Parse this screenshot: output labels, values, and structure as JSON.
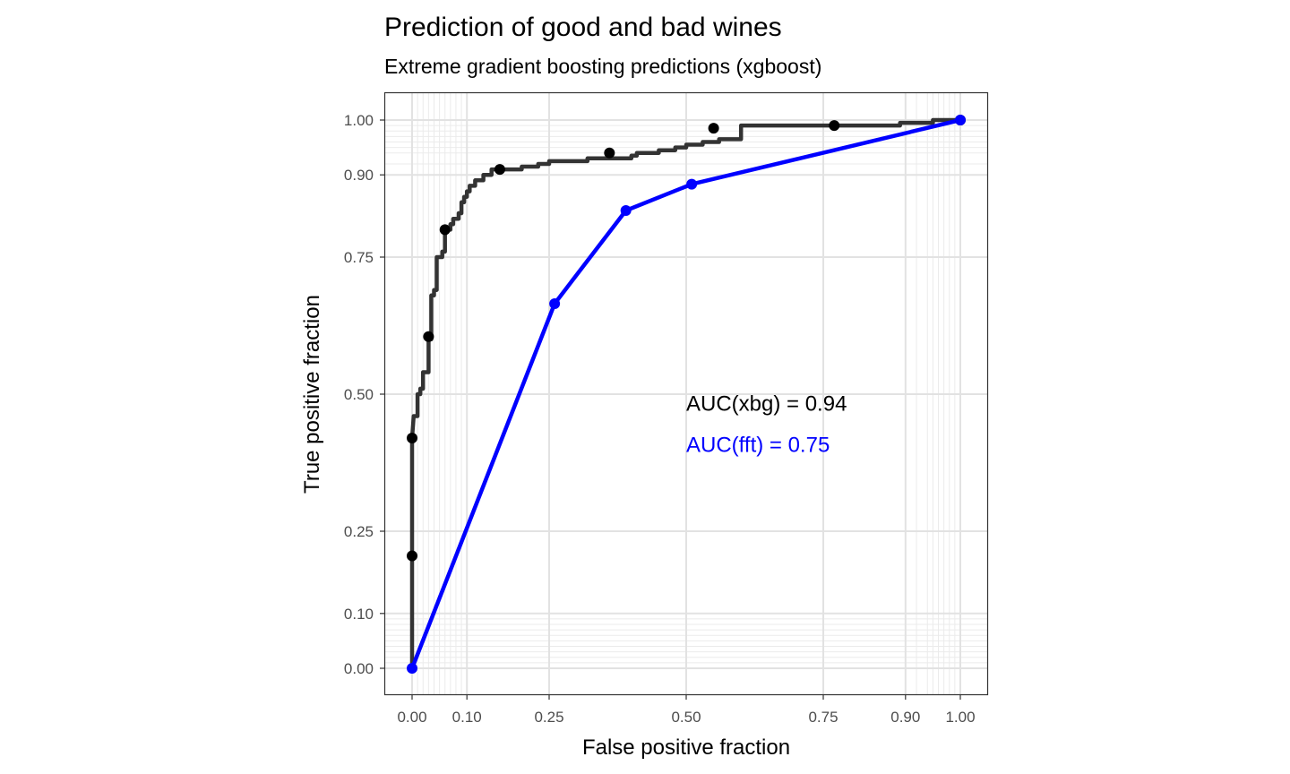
{
  "chart_data": {
    "type": "line",
    "title": "Prediction of good and bad wines",
    "subtitle": "Extreme gradient boosting predictions (xgboost)",
    "xlabel": "False positive fraction",
    "ylabel": "True positive fraction",
    "xlim": [
      0,
      1
    ],
    "ylim": [
      0,
      1
    ],
    "x_ticks": [
      0.0,
      0.1,
      0.25,
      0.5,
      0.75,
      0.9,
      1.0
    ],
    "x_tick_labels": [
      "0.00",
      "0.10",
      "0.25",
      "0.50",
      "0.75",
      "0.90",
      "1.00"
    ],
    "y_ticks": [
      0.0,
      0.1,
      0.25,
      0.5,
      0.75,
      0.9,
      1.0
    ],
    "y_tick_labels": [
      "0.00",
      "0.10",
      "0.25",
      "0.50",
      "0.75",
      "0.90",
      "1.00"
    ],
    "grid": true,
    "annotations": [
      {
        "text": "AUC(xbg) = 0.94",
        "x": 0.5,
        "y": 0.47,
        "color": "#000000"
      },
      {
        "text": "AUC(fft) = 0.75",
        "x": 0.5,
        "y": 0.395,
        "color": "#0000ff"
      }
    ],
    "series": [
      {
        "color": "#333333",
        "line": [
          [
            0,
            0
          ],
          [
            0,
            0.19
          ],
          [
            0,
            0.42
          ],
          [
            0.003,
            0.46
          ],
          [
            0.01,
            0.46
          ],
          [
            0.01,
            0.5
          ],
          [
            0.015,
            0.5
          ],
          [
            0.015,
            0.51
          ],
          [
            0.02,
            0.51
          ],
          [
            0.02,
            0.54
          ],
          [
            0.03,
            0.54
          ],
          [
            0.03,
            0.6
          ],
          [
            0.035,
            0.6
          ],
          [
            0.035,
            0.68
          ],
          [
            0.04,
            0.68
          ],
          [
            0.04,
            0.69
          ],
          [
            0.045,
            0.69
          ],
          [
            0.045,
            0.75
          ],
          [
            0.055,
            0.75
          ],
          [
            0.055,
            0.76
          ],
          [
            0.06,
            0.76
          ],
          [
            0.06,
            0.8
          ],
          [
            0.07,
            0.8
          ],
          [
            0.07,
            0.81
          ],
          [
            0.075,
            0.81
          ],
          [
            0.075,
            0.82
          ],
          [
            0.085,
            0.82
          ],
          [
            0.085,
            0.83
          ],
          [
            0.09,
            0.83
          ],
          [
            0.09,
            0.85
          ],
          [
            0.095,
            0.85
          ],
          [
            0.095,
            0.86
          ],
          [
            0.1,
            0.86
          ],
          [
            0.1,
            0.87
          ],
          [
            0.105,
            0.87
          ],
          [
            0.105,
            0.88
          ],
          [
            0.115,
            0.88
          ],
          [
            0.115,
            0.89
          ],
          [
            0.13,
            0.89
          ],
          [
            0.13,
            0.9
          ],
          [
            0.145,
            0.9
          ],
          [
            0.145,
            0.91
          ],
          [
            0.2,
            0.91
          ],
          [
            0.2,
            0.915
          ],
          [
            0.23,
            0.915
          ],
          [
            0.23,
            0.92
          ],
          [
            0.25,
            0.92
          ],
          [
            0.25,
            0.925
          ],
          [
            0.32,
            0.925
          ],
          [
            0.32,
            0.93
          ],
          [
            0.4,
            0.93
          ],
          [
            0.4,
            0.935
          ],
          [
            0.41,
            0.935
          ],
          [
            0.41,
            0.94
          ],
          [
            0.45,
            0.94
          ],
          [
            0.45,
            0.945
          ],
          [
            0.48,
            0.945
          ],
          [
            0.48,
            0.95
          ],
          [
            0.5,
            0.95
          ],
          [
            0.5,
            0.955
          ],
          [
            0.53,
            0.955
          ],
          [
            0.53,
            0.96
          ],
          [
            0.56,
            0.96
          ],
          [
            0.56,
            0.965
          ],
          [
            0.6,
            0.965
          ],
          [
            0.6,
            0.99
          ],
          [
            0.75,
            0.99
          ],
          [
            0.75,
            0.99
          ],
          [
            0.89,
            0.99
          ],
          [
            0.89,
            0.995
          ],
          [
            0.95,
            0.995
          ],
          [
            0.95,
            1.0
          ],
          [
            1.0,
            1.0
          ]
        ],
        "points": [
          [
            0,
            0.205
          ],
          [
            0,
            0.42
          ],
          [
            0.03,
            0.605
          ],
          [
            0.06,
            0.8
          ],
          [
            0.16,
            0.91
          ],
          [
            0.36,
            0.94
          ],
          [
            0.55,
            0.985
          ],
          [
            0.77,
            0.99
          ],
          [
            1.0,
            1.0
          ]
        ]
      },
      {
        "color": "#0000ff",
        "line": [
          [
            0,
            0
          ],
          [
            0.26,
            0.665
          ],
          [
            0.39,
            0.835
          ],
          [
            0.51,
            0.883
          ],
          [
            1.0,
            1.0
          ]
        ],
        "points": [
          [
            0,
            0
          ],
          [
            0.26,
            0.665
          ],
          [
            0.39,
            0.835
          ],
          [
            0.51,
            0.883
          ],
          [
            1.0,
            1.0
          ]
        ]
      }
    ]
  }
}
